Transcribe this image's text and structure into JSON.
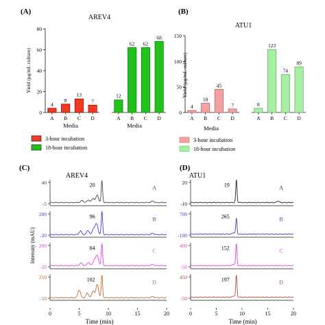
{
  "colors": {
    "arev_3h": "#ef3b22",
    "arev_18h": "#22c11c",
    "atu_3h": "#f2a3a1",
    "atu_18h": "#a6efa3",
    "trace_A": "#444444",
    "trace_B": "#3b3bd6",
    "trace_C": "#e040e0",
    "trace_D": "#c06a30",
    "atu_trace_A": "#222222",
    "atu_trace_B": "#3b3bc0",
    "atu_trace_C": "#e040e0",
    "atu_trace_D": "#b04a40"
  },
  "chart_data": [
    {
      "panel_label": "(A)",
      "type": "bar",
      "title": "AREV4",
      "ylabel": "Yield (μg/mL culture)",
      "xlabel": "Media",
      "categories": [
        "A",
        "B",
        "C",
        "D"
      ],
      "ylim": [
        0,
        80
      ],
      "yticks": [
        "0",
        "20",
        "40",
        "60",
        "80"
      ],
      "series": [
        {
          "name": "3-hour incubation",
          "values": [
            4,
            8,
            13,
            7
          ],
          "labels": [
            "4",
            "8",
            "13",
            "7"
          ],
          "color_key": "arev_3h"
        },
        {
          "name": "18-hour incubation",
          "values": [
            12,
            62,
            62,
            68
          ],
          "labels": [
            "12",
            "62",
            "62",
            "68"
          ],
          "color_key": "arev_18h"
        }
      ],
      "legend": "below"
    },
    {
      "panel_label": "(B)",
      "type": "bar",
      "title": "ATU1",
      "ylabel": "Yield (μg/mL culture)",
      "xlabel": "Media",
      "categories": [
        "A",
        "B",
        "C",
        "D"
      ],
      "ylim": [
        0,
        150
      ],
      "yticks": [
        "0",
        "50",
        "100",
        "150"
      ],
      "series": [
        {
          "name": "3-hour incubation",
          "values": [
            4,
            18,
            45,
            7
          ],
          "labels": [
            "4",
            "18",
            "45",
            "7"
          ],
          "color_key": "atu_3h"
        },
        {
          "name": "18-hour incubation",
          "values": [
            8,
            123,
            74,
            89
          ],
          "labels": [
            "8",
            "123",
            "74",
            "89"
          ],
          "color_key": "atu_18h"
        }
      ],
      "legend": "below"
    },
    {
      "panel_label": "(C)",
      "type": "line",
      "title": "AREV4",
      "ylabel": "Intensity (mAU)",
      "xlabel": "Time (min)",
      "xlim": [
        0,
        20
      ],
      "xticks": [
        "0",
        "5",
        "10",
        "15",
        "20"
      ],
      "traces": [
        {
          "medium": "A",
          "ymax_label": "40",
          "ymin_label": "-5",
          "peak_label": "20",
          "color_key": "trace_A",
          "baseline": 0.12,
          "peak": 0.95,
          "bumps": [
            [
              5.5,
              0.08
            ],
            [
              6.6,
              0.1
            ],
            [
              7.4,
              0.16
            ],
            [
              8.1,
              0.28
            ],
            [
              17.6,
              0.06
            ]
          ]
        },
        {
          "medium": "B",
          "ymax_label": "200",
          "ymin_label": "-20",
          "peak_label": "96",
          "color_key": "trace_B",
          "baseline": 0.1,
          "peak": 0.98,
          "bumps": [
            [
              5.2,
              0.14
            ],
            [
              6.5,
              0.16
            ],
            [
              7.5,
              0.24
            ],
            [
              8.0,
              0.4
            ],
            [
              17.6,
              0.05
            ]
          ]
        },
        {
          "medium": "C",
          "ymax_label": "200",
          "ymin_label": "-20",
          "peak_label": "84",
          "color_key": "trace_C",
          "baseline": 0.12,
          "peak": 0.95,
          "bumps": [
            [
              5.3,
              0.1
            ],
            [
              6.6,
              0.12
            ],
            [
              7.6,
              0.22
            ],
            [
              8.1,
              0.38
            ],
            [
              17.6,
              0.05
            ]
          ]
        },
        {
          "medium": "D",
          "ymax_label": "250",
          "ymin_label": "-50",
          "peak_label": "102",
          "color_key": "trace_D",
          "baseline": 0.1,
          "peak": 0.95,
          "bumps": [
            [
              5.0,
              0.3
            ],
            [
              6.4,
              0.18
            ],
            [
              7.4,
              0.26
            ],
            [
              8.1,
              0.5
            ],
            [
              17.6,
              0.05
            ]
          ]
        }
      ]
    },
    {
      "panel_label": "(D)",
      "type": "line",
      "title": "ATU1",
      "ylabel": "Intensity (mAU)",
      "xlabel": "Time (min)",
      "xlim": [
        0,
        20
      ],
      "xticks": [
        "0",
        "5",
        "10",
        "15",
        "20"
      ],
      "traces": [
        {
          "medium": "A",
          "ymax_label": "20",
          "ymin_label": "-10",
          "peak_label": "19",
          "color_key": "atu_trace_A",
          "baseline": 0.12,
          "peak": 0.98,
          "bumps": [
            [
              17.0,
              0.06
            ]
          ]
        },
        {
          "medium": "B",
          "ymax_label": "700",
          "ymin_label": "-100",
          "peak_label": "265",
          "color_key": "atu_trace_B",
          "baseline": 0.12,
          "peak": 0.72,
          "bumps": [
            [
              8.4,
              0.06
            ]
          ]
        },
        {
          "medium": "C",
          "ymax_label": "400",
          "ymin_label": "-50",
          "peak_label": "152",
          "color_key": "atu_trace_C",
          "baseline": 0.12,
          "peak": 0.95,
          "bumps": [
            [
              8.4,
              0.06
            ]
          ]
        },
        {
          "medium": "D",
          "ymax_label": "450",
          "ymin_label": "-50",
          "peak_label": "197",
          "color_key": "atu_trace_D",
          "baseline": 0.12,
          "peak": 0.95,
          "bumps": [
            [
              8.4,
              0.05
            ]
          ]
        }
      ]
    }
  ]
}
